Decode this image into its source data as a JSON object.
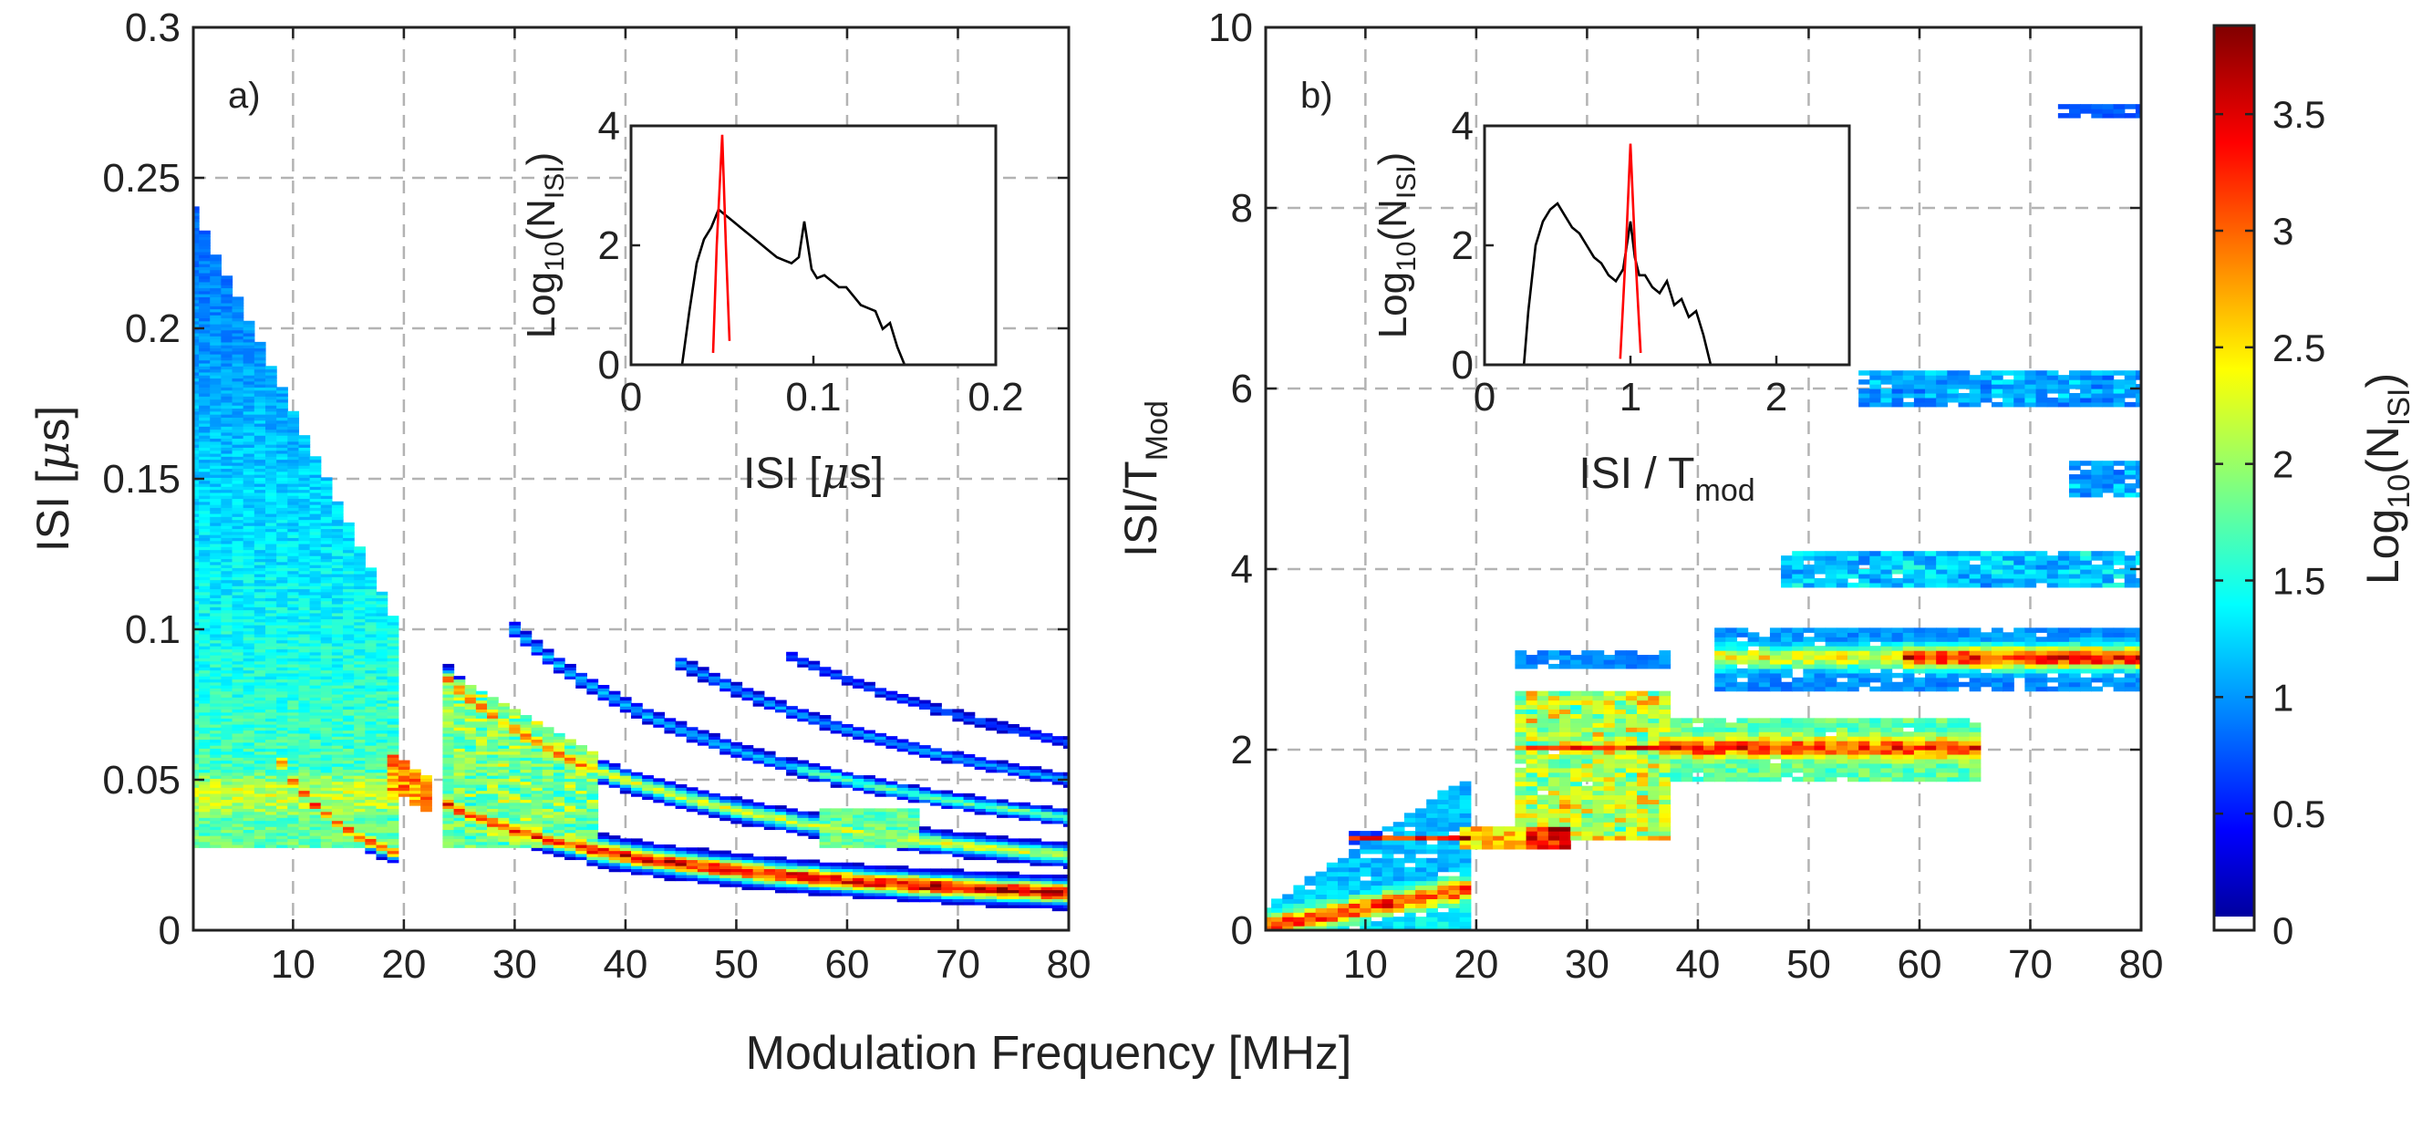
{
  "xlabel_shared": "Modulation Frequency [MHz]",
  "panels": [
    {
      "id": "a",
      "tag": "a)",
      "ylabel_main": "ISI [",
      "ylabel_mu": "μ",
      "ylabel_tail": "s]",
      "x_ticks": [
        "10",
        "20",
        "30",
        "40",
        "50",
        "60",
        "70",
        "80"
      ],
      "y_ticks": [
        "0",
        "0.05",
        "0.1",
        "0.15",
        "0.2",
        "0.25",
        "0.3"
      ]
    },
    {
      "id": "b",
      "tag": "b)",
      "ylabel_main": "ISI/T",
      "ylabel_sub": "Mod",
      "x_ticks": [
        "10",
        "20",
        "30",
        "40",
        "50",
        "60",
        "70",
        "80"
      ],
      "y_ticks": [
        "0",
        "2",
        "4",
        "6",
        "8",
        "10"
      ]
    }
  ],
  "insets": [
    {
      "id": "a-inset",
      "xlabel_main": "ISI [",
      "xlabel_mu": "μ",
      "xlabel_tail": "s]",
      "ylabel_main": "Log",
      "ylabel_sub1": "10",
      "ylabel_mid": "(N",
      "ylabel_sub2": "ISI",
      "ylabel_end": ")",
      "x_ticks": [
        "0",
        "0.1",
        "0.2"
      ],
      "y_ticks": [
        "0",
        "2",
        "4"
      ]
    },
    {
      "id": "b-inset",
      "xlabel_main": "ISI / T",
      "xlabel_sub": "mod",
      "ylabel_main": "Log",
      "ylabel_sub1": "10",
      "ylabel_mid": "(N",
      "ylabel_sub2": "ISI",
      "ylabel_end": ")",
      "x_ticks": [
        "0",
        "1",
        "2"
      ],
      "y_ticks": [
        "0",
        "2",
        "4"
      ]
    }
  ],
  "colorbar": {
    "ticks": [
      "0",
      "0.5",
      "1",
      "1.5",
      "2",
      "2.5",
      "3",
      "3.5"
    ],
    "label_main": "Log",
    "label_sub1": "10",
    "label_mid": "(N",
    "label_sub2": "ISI",
    "label_end": ")",
    "colormap": "jet"
  },
  "chart_data": [
    {
      "type": "heatmap",
      "panel": "a",
      "xlabel": "Modulation Frequency [MHz]",
      "ylabel": "ISI [μs]",
      "xlim": [
        1,
        80
      ],
      "ylim": [
        0,
        0.3
      ],
      "grid": true,
      "zlim": [
        0,
        3.85
      ],
      "bands": [
        {
          "x": [
            1,
            20
          ],
          "y_center": 0.045,
          "spread": 0.012,
          "peak": 2.6
        },
        {
          "x": [
            1,
            18
          ],
          "curve": "0.5/f",
          "peak": 3.0
        },
        {
          "x": [
            18,
            80
          ],
          "curve": "1/f",
          "peak": 3.5
        },
        {
          "x": [
            24,
            80
          ],
          "curve": "2/f",
          "peak": 2.4
        },
        {
          "x": [
            30,
            80
          ],
          "curve": "3/f",
          "peak": 1.6
        },
        {
          "x": [
            45,
            80
          ],
          "curve": "4/f",
          "peak": 1.1
        },
        {
          "x": [
            55,
            80
          ],
          "curve": "5/f",
          "peak": 0.8
        }
      ]
    },
    {
      "type": "heatmap",
      "panel": "b",
      "xlabel": "Modulation Frequency [MHz]",
      "ylabel": "ISI/T_Mod",
      "xlim": [
        1,
        80
      ],
      "ylim": [
        0,
        10
      ],
      "grid": true,
      "zlim": [
        0,
        3.85
      ],
      "bands": [
        {
          "level": 1,
          "x": [
            1,
            28
          ],
          "peak": 3.5
        },
        {
          "level": 2,
          "x": [
            24,
            65
          ],
          "peak": 3.3
        },
        {
          "level": 3,
          "x": [
            30,
            80
          ],
          "peak": 3.4
        },
        {
          "level": 4,
          "x": [
            48,
            80
          ],
          "peak": 1.4
        },
        {
          "level": 5,
          "x": [
            74,
            80
          ],
          "peak": 1.0
        },
        {
          "level": 6,
          "x": [
            55,
            80
          ],
          "peak": 1.0
        }
      ]
    },
    {
      "type": "line",
      "panel": "a-inset",
      "xlim": [
        0,
        0.2
      ],
      "ylim": [
        0,
        4
      ],
      "series": [
        {
          "color": "#000000",
          "x": [
            0.028,
            0.032,
            0.036,
            0.04,
            0.044,
            0.048,
            0.052,
            0.056,
            0.06,
            0.064,
            0.068,
            0.072,
            0.076,
            0.08,
            0.084,
            0.088,
            0.092,
            0.095,
            0.097,
            0.099,
            0.102,
            0.106,
            0.11,
            0.114,
            0.118,
            0.122,
            0.126,
            0.13,
            0.134,
            0.138,
            0.142,
            0.146,
            0.15
          ],
          "y": [
            0.0,
            0.9,
            1.7,
            2.1,
            2.3,
            2.6,
            2.5,
            2.4,
            2.3,
            2.2,
            2.1,
            2.0,
            1.9,
            1.8,
            1.75,
            1.7,
            1.8,
            2.4,
            2.0,
            1.6,
            1.45,
            1.5,
            1.4,
            1.3,
            1.3,
            1.15,
            1.0,
            0.95,
            0.9,
            0.6,
            0.7,
            0.3,
            0.0
          ]
        },
        {
          "color": "#ff0000",
          "x": [
            0.045,
            0.047,
            0.05,
            0.052,
            0.054
          ],
          "y": [
            0.2,
            2.0,
            3.85,
            2.0,
            0.4
          ]
        }
      ]
    },
    {
      "type": "line",
      "panel": "b-inset",
      "xlim": [
        0,
        2.5
      ],
      "ylim": [
        0,
        4
      ],
      "series": [
        {
          "color": "#000000",
          "x": [
            0.27,
            0.3,
            0.35,
            0.4,
            0.45,
            0.5,
            0.55,
            0.6,
            0.65,
            0.7,
            0.75,
            0.8,
            0.85,
            0.9,
            0.95,
            1.0,
            1.03,
            1.06,
            1.1,
            1.15,
            1.2,
            1.25,
            1.3,
            1.35,
            1.4,
            1.45,
            1.5,
            1.55
          ],
          "y": [
            0.0,
            0.9,
            2.0,
            2.4,
            2.6,
            2.7,
            2.5,
            2.3,
            2.2,
            2.0,
            1.8,
            1.7,
            1.5,
            1.4,
            1.6,
            2.4,
            1.8,
            1.5,
            1.5,
            1.3,
            1.2,
            1.4,
            1.0,
            1.1,
            0.8,
            0.9,
            0.5,
            0.0
          ]
        },
        {
          "color": "#ff0000",
          "x": [
            0.93,
            0.97,
            1.0,
            1.03,
            1.07
          ],
          "y": [
            0.1,
            2.0,
            3.7,
            2.0,
            0.2
          ]
        }
      ]
    }
  ]
}
